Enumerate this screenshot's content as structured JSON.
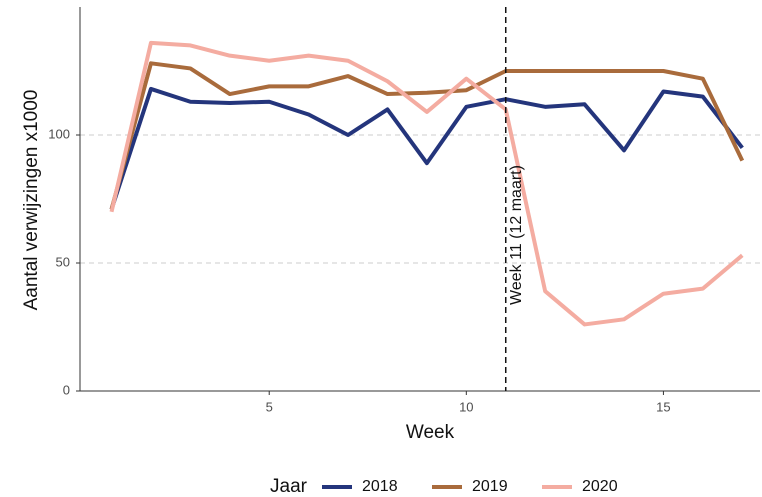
{
  "chart_data": {
    "type": "line",
    "x_label": "Week",
    "y_label": "Aantal verwijzingen x1000",
    "x": [
      1,
      2,
      3,
      4,
      5,
      6,
      7,
      8,
      9,
      10,
      11,
      12,
      13,
      14,
      15,
      16,
      17
    ],
    "series": [
      {
        "name": "2018",
        "color": "#24357c",
        "values": [
          71,
          118,
          113,
          112.5,
          113,
          108,
          100,
          110,
          89,
          111,
          114,
          111,
          112,
          94,
          117,
          115,
          95
        ]
      },
      {
        "name": "2019",
        "color": "#a96b3c",
        "values": [
          71,
          128,
          126,
          116,
          119,
          119,
          123,
          116,
          116.5,
          117.5,
          125,
          125,
          125,
          125,
          125,
          122,
          90
        ]
      },
      {
        "name": "2020",
        "color": "#f4aca1",
        "values": [
          70,
          136,
          135,
          131,
          129,
          131,
          129,
          121,
          109,
          122,
          110,
          39,
          26,
          28,
          38,
          40,
          53
        ]
      }
    ],
    "xlim": [
      0.2,
      17.45
    ],
    "ylim": [
      0,
      150
    ],
    "xticks": [
      5,
      10,
      15
    ],
    "yticks": [
      0,
      50,
      100
    ],
    "grid": true,
    "annotation": {
      "x": 11,
      "label": "Week 11 (12 maart)"
    },
    "legend_title": "Jaar",
    "legend_position": "bottom"
  }
}
